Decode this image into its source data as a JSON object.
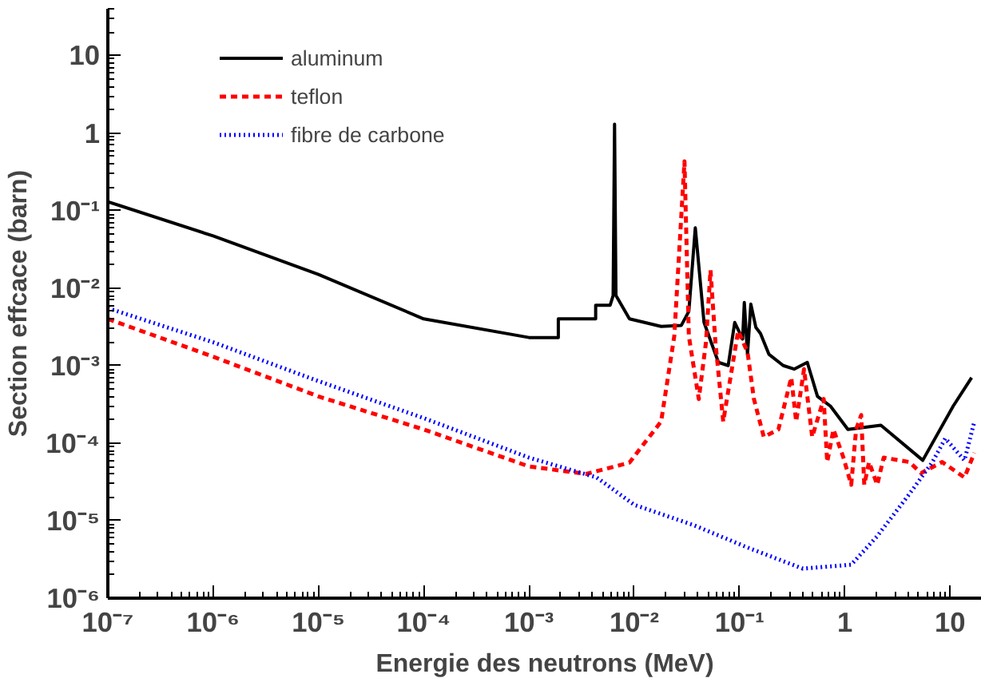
{
  "chart_data": {
    "type": "line",
    "xlabel": "Energie des neutrons (MeV)",
    "ylabel": "Section effcace (barn)",
    "log": "xy",
    "xlim": [
      1e-07,
      20
    ],
    "ylim": [
      1e-06,
      40
    ],
    "xticks": [
      {
        "value": 1e-07,
        "label": "10⁻⁷"
      },
      {
        "value": 1e-06,
        "label": "10⁻⁶"
      },
      {
        "value": 1e-05,
        "label": "10⁻⁵"
      },
      {
        "value": 0.0001,
        "label": "10⁻⁴"
      },
      {
        "value": 0.001,
        "label": "10⁻³"
      },
      {
        "value": 0.01,
        "label": "10⁻²"
      },
      {
        "value": 0.1,
        "label": "10⁻¹"
      },
      1,
      10
    ],
    "yticks": [
      {
        "value": 1e-06,
        "label": "10⁻⁶"
      },
      {
        "value": 1e-05,
        "label": "10⁻⁵"
      },
      {
        "value": 0.0001,
        "label": "10⁻⁴"
      },
      {
        "value": 0.001,
        "label": "10⁻³"
      },
      {
        "value": 0.01,
        "label": "10⁻²"
      },
      {
        "value": 0.1,
        "label": "10⁻¹"
      },
      1,
      10
    ],
    "grid": false,
    "legend": "top left",
    "marker": "none",
    "series": [
      {
        "name": "aluminum",
        "color": "#000000",
        "line_style": "solid",
        "x": [
          1e-07,
          1e-06,
          1e-05,
          0.0001,
          0.001,
          0.0019,
          0.0019,
          0.0043,
          0.0043,
          0.0059,
          0.0063,
          0.0065,
          0.0067,
          0.009,
          0.018,
          0.028,
          0.033,
          0.038,
          0.046,
          0.063,
          0.078,
          0.09,
          0.107,
          0.111,
          0.119,
          0.128,
          0.143,
          0.158,
          0.19,
          0.26,
          0.33,
          0.44,
          0.55,
          0.73,
          1.07,
          2.2,
          5.5,
          10.7,
          16
        ],
        "values": [
          0.13,
          0.047,
          0.015,
          0.004,
          0.0023,
          0.0023,
          0.004,
          0.004,
          0.006,
          0.006,
          0.008,
          1.3,
          0.008,
          0.004,
          0.0032,
          0.0033,
          0.005,
          0.06,
          0.0036,
          0.0011,
          0.001,
          0.0036,
          0.0022,
          0.0065,
          0.0014,
          0.0062,
          0.0031,
          0.0026,
          0.0014,
          0.001,
          0.0009,
          0.0011,
          0.0004,
          0.0003,
          0.00015,
          0.00017,
          6e-05,
          0.0003,
          0.0007
        ]
      },
      {
        "name": "teflon",
        "color": "#ff0000",
        "line_style": "dashed",
        "x": [
          1e-07,
          1e-06,
          1e-05,
          0.0001,
          0.001,
          0.0035,
          0.009,
          0.018,
          0.024,
          0.03,
          0.033,
          0.041,
          0.048,
          0.053,
          0.059,
          0.07,
          0.097,
          0.119,
          0.137,
          0.17,
          0.234,
          0.31,
          0.345,
          0.41,
          0.49,
          0.63,
          0.68,
          0.78,
          0.97,
          1.15,
          1.28,
          1.43,
          1.53,
          1.7,
          2.03,
          2.34,
          4.1,
          5.3,
          8.4,
          13.7,
          17
        ],
        "values": [
          0.004,
          0.0013,
          0.0004,
          0.00015,
          5e-05,
          4e-05,
          5.6e-05,
          0.00019,
          0.0024,
          0.43,
          0.0024,
          0.00037,
          0.002,
          0.017,
          0.002,
          0.00019,
          0.0028,
          0.0015,
          0.00037,
          0.00012,
          0.00015,
          0.0007,
          0.00019,
          0.0009,
          0.00012,
          0.00037,
          5.7e-05,
          0.00015,
          6.5e-05,
          2.9e-05,
          0.00015,
          0.00023,
          2.9e-05,
          5.7e-05,
          2.9e-05,
          6.5e-05,
          5.7e-05,
          4.1e-05,
          5.7e-05,
          3.6e-05,
          7.5e-05
        ]
      },
      {
        "name": "fibre de carbone",
        "color": "#0000ff",
        "line_style": "dotted",
        "x": [
          1e-07,
          1e-06,
          1e-05,
          0.0001,
          0.001,
          0.0044,
          0.01,
          0.037,
          0.119,
          0.4,
          1.15,
          2.03,
          4.1,
          6.8,
          9,
          13.7,
          17
        ],
        "values": [
          0.0055,
          0.002,
          0.00063,
          0.00021,
          6.5e-05,
          3.6e-05,
          1.6e-05,
          8.7e-06,
          4.5e-06,
          2.4e-06,
          2.7e-06,
          6.3e-06,
          2.2e-05,
          5.7e-05,
          0.000115,
          6e-05,
          0.00019
        ]
      }
    ]
  }
}
